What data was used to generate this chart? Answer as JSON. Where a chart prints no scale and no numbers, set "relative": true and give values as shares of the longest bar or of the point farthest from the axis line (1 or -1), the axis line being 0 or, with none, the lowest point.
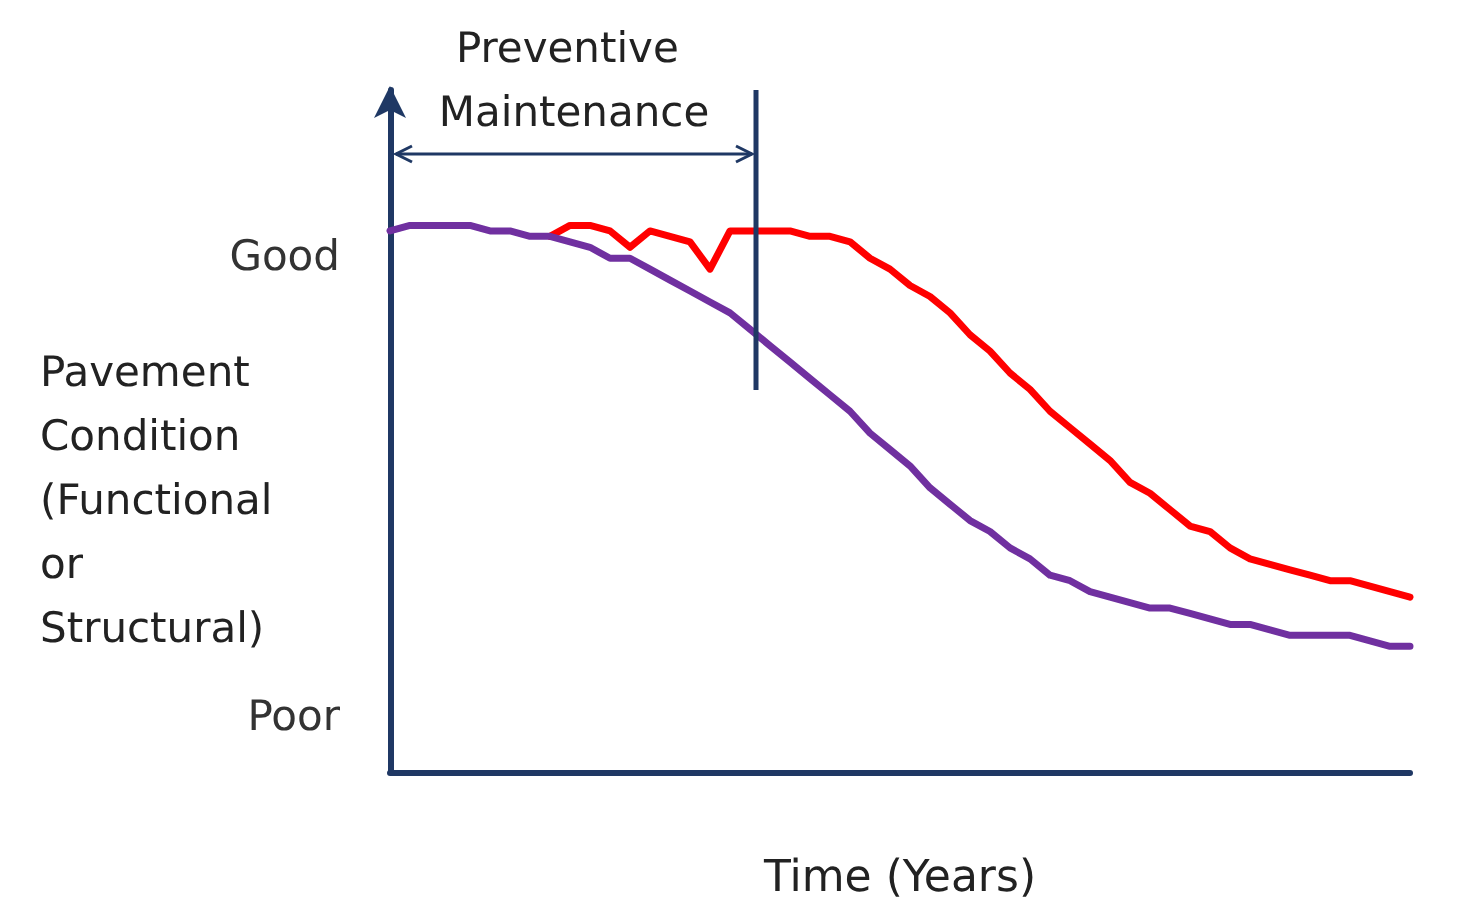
{
  "chart_data": {
    "type": "line",
    "relative": true,
    "xlabel": "Time (Years)",
    "ylabel": "Pavement Condition (Functional or Structural)",
    "grid": false,
    "marker": "none",
    "line_style": "solid",
    "categories": [
      null,
      null,
      null,
      null,
      null,
      null,
      null,
      null,
      null,
      null,
      null,
      null,
      null,
      null,
      null,
      null,
      null,
      null,
      null,
      null,
      null,
      null,
      null,
      null,
      null,
      null,
      null,
      null,
      null,
      null,
      null,
      null,
      null,
      null,
      null,
      null,
      null,
      null,
      null,
      null,
      null,
      null,
      null,
      null,
      null,
      null,
      null,
      null,
      null,
      null,
      null,
      null
    ],
    "series": [
      {
        "color": "#ff0000",
        "values": [
          null,
          null,
          null,
          null,
          null,
          null,
          null,
          null,
          0.98,
          1.0,
          1.0,
          0.99,
          0.96,
          0.99,
          0.98,
          0.97,
          0.92,
          0.99,
          0.99,
          0.99,
          0.99,
          0.98,
          0.98,
          0.97,
          0.94,
          0.92,
          0.89,
          0.87,
          0.84,
          0.8,
          0.77,
          0.73,
          0.7,
          0.66,
          0.63,
          0.6,
          0.57,
          0.53,
          0.51,
          0.48,
          0.45,
          0.44,
          0.41,
          0.39,
          0.38,
          0.37,
          0.36,
          0.35,
          0.35,
          0.34,
          0.33,
          0.32
        ]
      },
      {
        "color": "#7030a0",
        "values": [
          0.99,
          1.0,
          1.0,
          1.0,
          1.0,
          0.99,
          0.99,
          0.98,
          0.98,
          0.97,
          0.96,
          0.94,
          0.94,
          0.92,
          0.9,
          0.88,
          0.86,
          0.84,
          0.81,
          0.78,
          0.75,
          0.72,
          0.69,
          0.66,
          0.62,
          0.59,
          0.56,
          0.52,
          0.49,
          0.46,
          0.44,
          0.41,
          0.39,
          0.36,
          0.35,
          0.33,
          0.32,
          0.31,
          0.3,
          0.3,
          0.29,
          0.28,
          0.27,
          0.27,
          0.26,
          0.25,
          0.25,
          0.25,
          0.25,
          0.24,
          0.23,
          0.23
        ]
      }
    ],
    "annotations": [
      "Preventive Maintenance",
      "Good",
      "Poor"
    ]
  }
}
